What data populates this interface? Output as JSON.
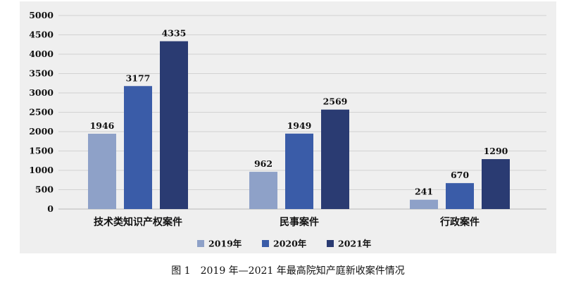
{
  "chart_data": {
    "type": "bar",
    "categories": [
      "技术类知识产权案件",
      "民事案件",
      "行政案件"
    ],
    "series": [
      {
        "name": "2019年",
        "values": [
          1946,
          962,
          241
        ],
        "color": "#8ea1c8"
      },
      {
        "name": "2020年",
        "values": [
          3177,
          1949,
          670
        ],
        "color": "#3a5ca8"
      },
      {
        "name": "2021年",
        "values": [
          4335,
          2569,
          1290
        ],
        "color": "#2a3b72"
      }
    ],
    "yticks": [
      0,
      500,
      1000,
      1500,
      2000,
      2500,
      3000,
      3500,
      4000,
      4500,
      5000
    ],
    "ylim": [
      0,
      5000
    ],
    "grid": true,
    "legend_position": "bottom",
    "title": "",
    "xlabel": "",
    "ylabel": ""
  },
  "caption": "图 1　2019 年—2021 年最高院知产庭新收案件情况"
}
